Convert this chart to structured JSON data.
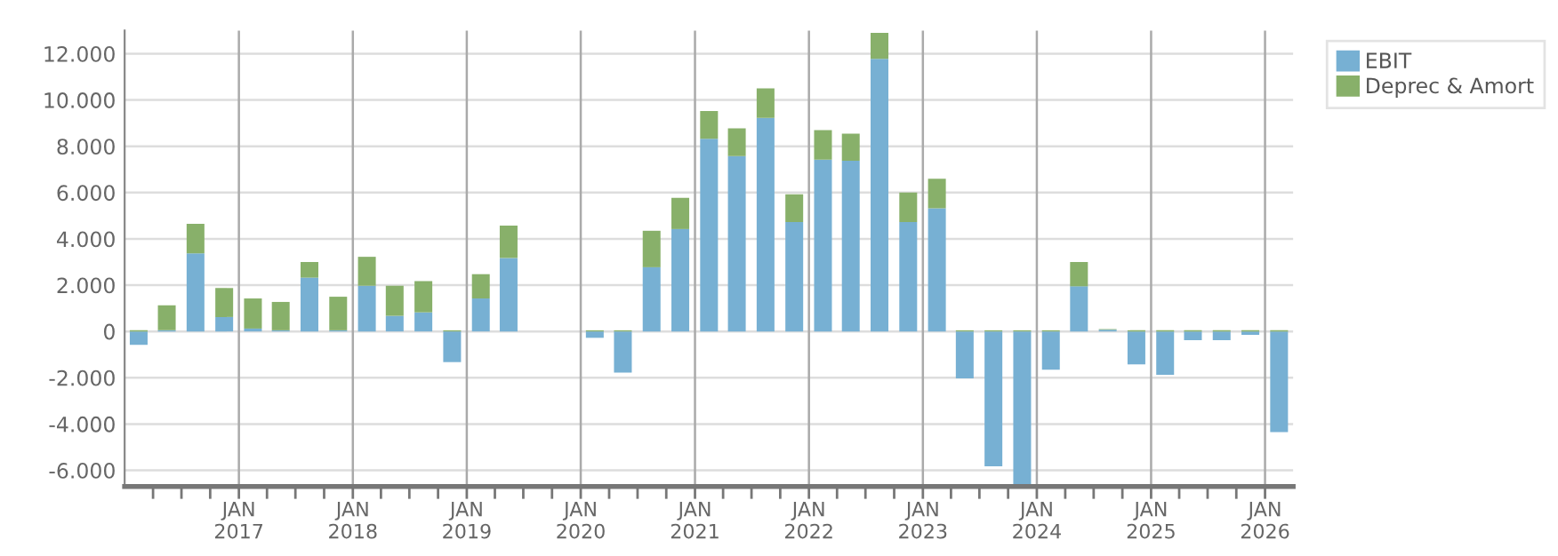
{
  "chart_data": {
    "type": "bar",
    "stacked": true,
    "x": [
      "2016-02-15",
      "2016-05-15",
      "2016-08-15",
      "2016-11-15",
      "2017-02-15",
      "2017-05-15",
      "2017-08-15",
      "2017-11-15",
      "2018-02-15",
      "2018-05-15",
      "2018-08-15",
      "2018-11-15",
      "2019-02-15",
      "2019-05-15",
      "2019-08-15",
      "2019-11-15",
      "2020-02-15",
      "2020-05-15",
      "2020-08-15",
      "2020-11-15",
      "2021-02-15",
      "2021-05-15",
      "2021-08-15",
      "2021-11-15",
      "2022-02-15",
      "2022-05-15",
      "2022-08-15",
      "2022-11-15",
      "2023-02-15",
      "2023-05-15",
      "2023-08-15",
      "2023-11-15",
      "2024-02-15",
      "2024-05-15",
      "2024-08-15",
      "2024-11-15",
      "2025-02-15",
      "2025-05-15",
      "2025-08-15",
      "2025-11-15",
      "2026-02-15"
    ],
    "series": [
      {
        "name": "EBIT",
        "color": "#77b0d3",
        "values": [
          -575,
          50,
          3375,
          625,
          125,
          50,
          2325,
          50,
          1975,
          675,
          825,
          -1325,
          1425,
          3175,
          null,
          null,
          -275,
          -1775,
          2775,
          4425,
          8325,
          7575,
          9225,
          4725,
          7425,
          7375,
          11775,
          4725,
          5325,
          -2025,
          -5825,
          -6700,
          -1650,
          1950,
          75,
          -1425,
          -1875,
          -375,
          -375,
          -150,
          -4350
        ]
      },
      {
        "name": "Deprec & Amort",
        "color": "#88b06a",
        "values": [
          50,
          1075,
          1275,
          1250,
          1300,
          1225,
          675,
          1450,
          1250,
          1300,
          1350,
          50,
          1050,
          1400,
          null,
          null,
          50,
          50,
          1575,
          1350,
          1200,
          1200,
          1275,
          1200,
          1275,
          1175,
          1125,
          1275,
          1275,
          50,
          50,
          50,
          50,
          1050,
          25,
          50,
          50,
          50,
          50,
          50,
          50
        ]
      }
    ],
    "xlim": [
      "2016-01-01",
      "2026-04-01"
    ],
    "xticks": [
      {
        "value": "2016-04-01",
        "label": null
      },
      {
        "value": "2016-07-01",
        "label": null
      },
      {
        "value": "2016-10-01",
        "label": null
      },
      {
        "value": "2017-01-01",
        "label": "JAN\n2017"
      },
      {
        "value": "2017-04-01",
        "label": null
      },
      {
        "value": "2017-07-01",
        "label": null
      },
      {
        "value": "2017-10-01",
        "label": null
      },
      {
        "value": "2018-01-01",
        "label": "JAN\n2018"
      },
      {
        "value": "2018-04-01",
        "label": null
      },
      {
        "value": "2018-07-01",
        "label": null
      },
      {
        "value": "2018-10-01",
        "label": null
      },
      {
        "value": "2019-01-01",
        "label": "JAN\n2019"
      },
      {
        "value": "2019-04-01",
        "label": null
      },
      {
        "value": "2019-07-01",
        "label": null
      },
      {
        "value": "2019-10-01",
        "label": null
      },
      {
        "value": "2020-01-01",
        "label": "JAN\n2020"
      },
      {
        "value": "2020-04-01",
        "label": null
      },
      {
        "value": "2020-07-01",
        "label": null
      },
      {
        "value": "2020-10-01",
        "label": null
      },
      {
        "value": "2021-01-01",
        "label": "JAN\n2021"
      },
      {
        "value": "2021-04-01",
        "label": null
      },
      {
        "value": "2021-07-01",
        "label": null
      },
      {
        "value": "2021-10-01",
        "label": null
      },
      {
        "value": "2022-01-01",
        "label": "JAN\n2022"
      },
      {
        "value": "2022-04-01",
        "label": null
      },
      {
        "value": "2022-07-01",
        "label": null
      },
      {
        "value": "2022-10-01",
        "label": null
      },
      {
        "value": "2023-01-01",
        "label": "JAN\n2023"
      },
      {
        "value": "2023-04-01",
        "label": null
      },
      {
        "value": "2023-07-01",
        "label": null
      },
      {
        "value": "2023-10-01",
        "label": null
      },
      {
        "value": "2024-01-01",
        "label": "JAN\n2024"
      },
      {
        "value": "2024-04-01",
        "label": null
      },
      {
        "value": "2024-07-01",
        "label": null
      },
      {
        "value": "2024-10-01",
        "label": null
      },
      {
        "value": "2025-01-01",
        "label": "JAN\n2025"
      },
      {
        "value": "2025-04-01",
        "label": null
      },
      {
        "value": "2025-07-01",
        "label": null
      },
      {
        "value": "2025-10-01",
        "label": null
      },
      {
        "value": "2026-01-01",
        "label": "JAN\n2026"
      }
    ],
    "ylim": [
      -6700,
      13000
    ],
    "yticks": [
      {
        "value": -6000,
        "label": "-6.000"
      },
      {
        "value": -4000,
        "label": "-4.000"
      },
      {
        "value": -2000,
        "label": "-2.000"
      },
      0,
      {
        "value": 2000,
        "label": "2.000"
      },
      {
        "value": 4000,
        "label": "4.000"
      },
      {
        "value": 6000,
        "label": "6.000"
      },
      {
        "value": 8000,
        "label": "8.000"
      },
      {
        "value": 10000,
        "label": "10.000"
      },
      {
        "value": 12000,
        "label": "12.000"
      }
    ],
    "grid": true,
    "legend": "top right"
  }
}
